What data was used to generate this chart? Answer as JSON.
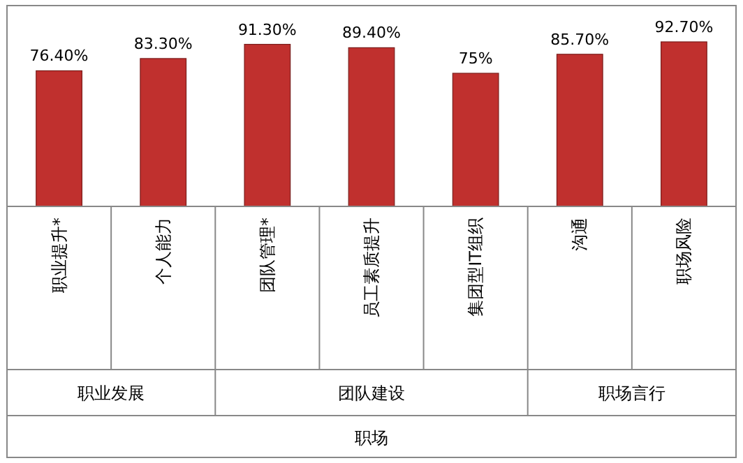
{
  "chart_data": {
    "type": "bar",
    "categories": [
      "职业提升*",
      "个人能力",
      "团队管理*",
      "员工素质提升",
      "集团型IT组织",
      "沟通",
      "职场风险"
    ],
    "values": [
      76.4,
      83.3,
      91.3,
      89.4,
      75,
      85.7,
      92.7
    ],
    "value_labels": [
      "76.40%",
      "83.30%",
      "91.30%",
      "89.40%",
      "75%",
      "85.70%",
      "92.70%"
    ],
    "color": "#c0302e",
    "annotations": [
      "职业发展",
      "团队建设",
      "职场言行",
      "职场"
    ]
  }
}
